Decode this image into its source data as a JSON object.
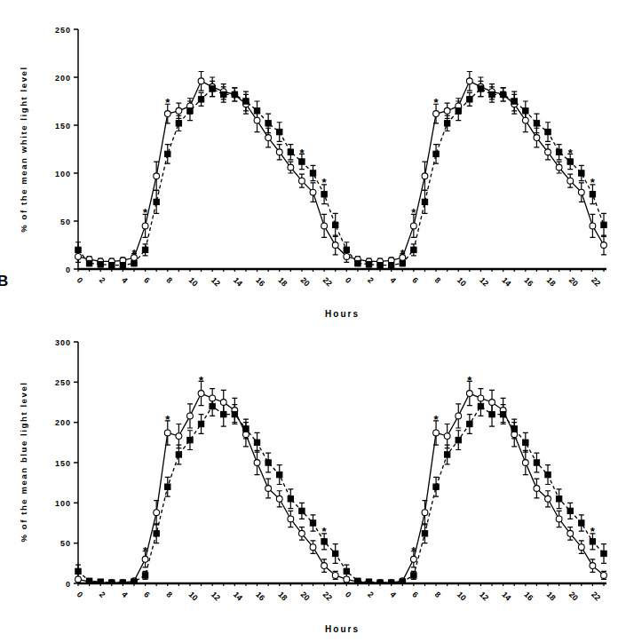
{
  "chart_data": [
    {
      "type": "line",
      "y_label": "% of the mean white light level",
      "x_label": "Hours",
      "categories": [
        "0",
        null,
        "2",
        null,
        "4",
        null,
        "6",
        null,
        "8",
        null,
        "10",
        null,
        "12",
        null,
        "14",
        null,
        "16",
        null,
        "18",
        null,
        "20",
        null,
        "22",
        null,
        "0",
        null,
        "2",
        null,
        "4",
        null,
        "6",
        null,
        "8",
        null,
        "10",
        null,
        "12",
        null,
        "14",
        null,
        "16",
        null,
        "18",
        null,
        "20",
        null,
        "22",
        null
      ],
      "ylim": [
        0,
        250
      ],
      "yticks": [
        0,
        50,
        100,
        150,
        200,
        250
      ],
      "grid": false,
      "series": [
        {
          "color": "#000000",
          "marker": "circle",
          "line_style": "solid",
          "values": [
            13,
            10,
            8,
            8,
            9,
            12,
            45,
            97,
            162,
            165,
            170,
            196,
            190,
            185,
            182,
            172,
            155,
            137,
            122,
            106,
            92,
            80,
            45,
            25,
            13,
            10,
            8,
            8,
            9,
            12,
            45,
            97,
            162,
            165,
            170,
            196,
            190,
            185,
            182,
            172,
            155,
            137,
            122,
            106,
            92,
            80,
            45,
            25
          ],
          "errors": [
            6,
            3,
            3,
            3,
            3,
            4,
            12,
            15,
            10,
            8,
            8,
            10,
            10,
            8,
            7,
            10,
            12,
            10,
            8,
            6,
            7,
            10,
            12,
            10,
            6,
            3,
            3,
            3,
            3,
            4,
            12,
            15,
            10,
            8,
            8,
            10,
            10,
            8,
            7,
            10,
            12,
            10,
            8,
            6,
            7,
            10,
            12,
            10
          ]
        },
        {
          "color": "#000000",
          "marker": "square",
          "line_style": "dashed",
          "values": [
            20,
            6,
            5,
            4,
            4,
            6,
            20,
            70,
            120,
            152,
            165,
            177,
            188,
            182,
            182,
            175,
            165,
            152,
            143,
            122,
            112,
            100,
            78,
            46,
            20,
            6,
            5,
            4,
            4,
            6,
            20,
            70,
            120,
            152,
            165,
            177,
            188,
            182,
            182,
            175,
            165,
            152,
            143,
            122,
            112,
            100,
            78,
            46
          ],
          "errors": [
            8,
            3,
            3,
            3,
            3,
            3,
            6,
            12,
            10,
            8,
            10,
            7,
            8,
            8,
            7,
            10,
            10,
            10,
            10,
            8,
            8,
            8,
            10,
            12,
            8,
            3,
            3,
            3,
            3,
            3,
            6,
            12,
            10,
            8,
            10,
            7,
            8,
            8,
            7,
            10,
            10,
            10,
            10,
            8,
            8,
            8,
            10,
            12
          ]
        }
      ],
      "annotations": [
        {
          "text": "*",
          "index": 5,
          "y": 18
        },
        {
          "text": "*",
          "index": 6,
          "y": 60
        },
        {
          "text": "*",
          "index": 8,
          "y": 175
        },
        {
          "text": "*",
          "index": 20,
          "y": 122
        },
        {
          "text": "*",
          "index": 22,
          "y": 92
        },
        {
          "text": "*",
          "index": 29,
          "y": 18
        },
        {
          "text": "*",
          "index": 30,
          "y": 60
        },
        {
          "text": "*",
          "index": 32,
          "y": 175
        },
        {
          "text": "*",
          "index": 44,
          "y": 122
        },
        {
          "text": "*",
          "index": 46,
          "y": 92
        }
      ]
    },
    {
      "type": "line",
      "panel_label": "B",
      "y_label": "% of the mean blue light level",
      "x_label": "Hours",
      "categories": [
        "0",
        null,
        "2",
        null,
        "4",
        null,
        "6",
        null,
        "8",
        null,
        "10",
        null,
        "12",
        null,
        "14",
        null,
        "16",
        null,
        "18",
        null,
        "20",
        null,
        "22",
        null,
        "0",
        null,
        "2",
        null,
        "4",
        null,
        "6",
        null,
        "8",
        null,
        "10",
        null,
        "12",
        null,
        "14",
        null,
        "16",
        null,
        "18",
        null,
        "20",
        null,
        "22",
        null
      ],
      "ylim": [
        0,
        300
      ],
      "yticks": [
        0,
        50,
        100,
        150,
        200,
        250,
        300
      ],
      "grid": false,
      "series": [
        {
          "color": "#000000",
          "marker": "circle",
          "line_style": "solid",
          "values": [
            5,
            2,
            1,
            1,
            1,
            3,
            30,
            88,
            187,
            183,
            208,
            236,
            230,
            225,
            215,
            185,
            150,
            118,
            105,
            80,
            62,
            45,
            22,
            10,
            5,
            2,
            1,
            1,
            1,
            3,
            30,
            88,
            187,
            183,
            208,
            236,
            230,
            225,
            215,
            185,
            150,
            118,
            105,
            80,
            62,
            45,
            22,
            10
          ],
          "errors": [
            3,
            1,
            1,
            1,
            1,
            2,
            10,
            15,
            15,
            15,
            15,
            15,
            12,
            15,
            15,
            15,
            15,
            12,
            10,
            10,
            8,
            8,
            8,
            5,
            3,
            1,
            1,
            1,
            1,
            2,
            10,
            15,
            15,
            15,
            15,
            15,
            12,
            15,
            15,
            15,
            15,
            12,
            10,
            10,
            8,
            8,
            8,
            5
          ]
        },
        {
          "color": "#000000",
          "marker": "square",
          "line_style": "dashed",
          "values": [
            15,
            3,
            2,
            1,
            1,
            2,
            10,
            62,
            120,
            160,
            178,
            198,
            220,
            210,
            210,
            192,
            175,
            150,
            135,
            105,
            90,
            75,
            52,
            37,
            15,
            3,
            2,
            1,
            1,
            2,
            10,
            62,
            120,
            160,
            178,
            198,
            220,
            210,
            210,
            192,
            175,
            150,
            135,
            105,
            90,
            75,
            52,
            37
          ],
          "errors": [
            8,
            2,
            1,
            1,
            1,
            2,
            5,
            12,
            12,
            12,
            12,
            12,
            12,
            15,
            12,
            12,
            12,
            12,
            12,
            12,
            10,
            10,
            10,
            12,
            8,
            2,
            1,
            1,
            1,
            2,
            5,
            12,
            12,
            12,
            12,
            12,
            12,
            15,
            12,
            12,
            12,
            12,
            12,
            12,
            10,
            10,
            10,
            12
          ]
        }
      ],
      "annotations": [
        {
          "text": "*",
          "index": 6,
          "y": 42
        },
        {
          "text": "*",
          "index": 8,
          "y": 205
        },
        {
          "text": "*",
          "index": 11,
          "y": 254
        },
        {
          "text": "*",
          "index": 22,
          "y": 66
        },
        {
          "text": "*",
          "index": 30,
          "y": 42
        },
        {
          "text": "*",
          "index": 32,
          "y": 205
        },
        {
          "text": "*",
          "index": 35,
          "y": 254
        },
        {
          "text": "*",
          "index": 46,
          "y": 66
        }
      ]
    }
  ]
}
